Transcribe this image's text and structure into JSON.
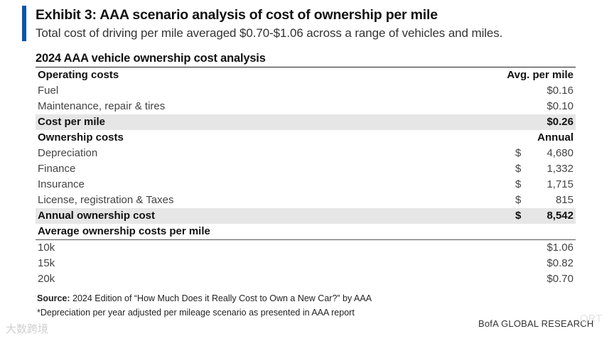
{
  "exhibit": {
    "title": "Exhibit 3: AAA scenario analysis of cost of ownership per mile",
    "subtitle": "Total cost of driving per mile averaged $0.70-$1.06 across a range of vehicles and miles."
  },
  "table": {
    "title": "2024 AAA vehicle ownership cost analysis",
    "operating": {
      "header": "Operating costs",
      "column_header": "Avg. per mile",
      "rows": [
        {
          "label": "Fuel",
          "value": "$0.16"
        },
        {
          "label": "Maintenance, repair & tires",
          "value": "$0.10"
        }
      ],
      "total": {
        "label": "Cost per mile",
        "value": "$0.26"
      }
    },
    "ownership": {
      "header": "Ownership costs",
      "column_header": "Annual",
      "rows": [
        {
          "label": "Depreciation",
          "currency": "$",
          "value": "4,680"
        },
        {
          "label": "Finance",
          "currency": "$",
          "value": "1,332"
        },
        {
          "label": "Insurance",
          "currency": "$",
          "value": "1,715"
        },
        {
          "label": "License, registration & Taxes",
          "currency": "$",
          "value": "815"
        }
      ],
      "total": {
        "label": "Annual ownership cost",
        "currency": "$",
        "value": "8,542"
      }
    },
    "per_mile": {
      "header": "Average ownership costs per mile",
      "rows": [
        {
          "label": "10k",
          "value": "$1.06"
        },
        {
          "label": "15k",
          "value": "$0.82"
        },
        {
          "label": "20k",
          "value": "$0.70"
        }
      ]
    }
  },
  "source": {
    "key": "Source:",
    "text": " 2024 Edition of “How Much Does it Really Cost to Own a New Car?” by AAA"
  },
  "footnote": "*Depreciation per year adjusted per mileage scenario as presented in AAA report",
  "brand": "BofA GLOBAL RESEARCH",
  "watermark": "大数跨境",
  "watermark_right": "ORT"
}
